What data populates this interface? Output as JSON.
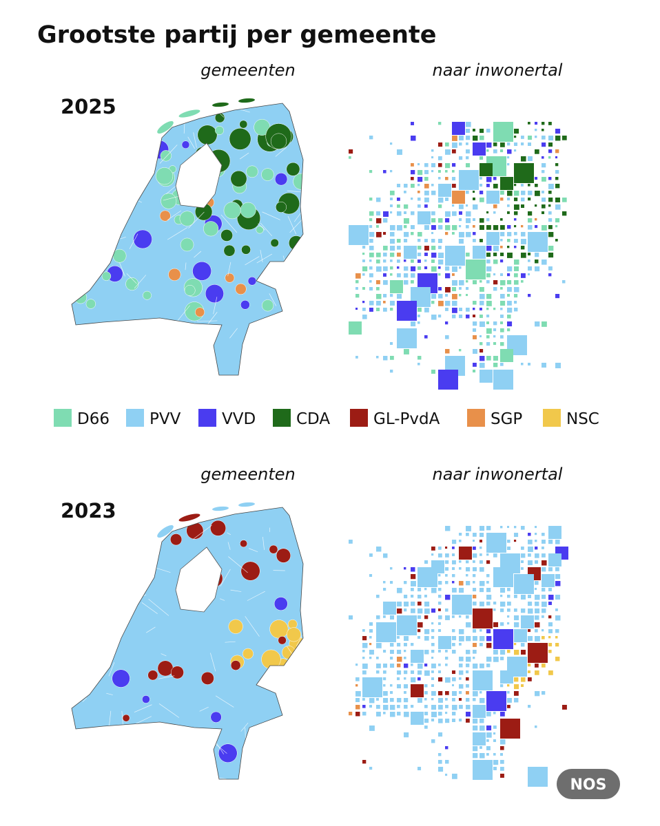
{
  "title": "Grootste partij per gemeente",
  "panels": [
    {
      "year": "2025",
      "map_label": "gemeenten",
      "cartogram_label": "naar inwonertal"
    },
    {
      "year": "2023",
      "map_label": "gemeenten",
      "cartogram_label": "naar inwonertal"
    }
  ],
  "legend": [
    {
      "name": "D66",
      "color": "#7fdcb2"
    },
    {
      "name": "PVV",
      "color": "#8fd0f3"
    },
    {
      "name": "VVD",
      "color": "#4a3cf0"
    },
    {
      "name": "CDA",
      "color": "#1f6a1a"
    },
    {
      "name": "GL-PvdA",
      "color": "#9c1c14"
    },
    {
      "name": "SGP",
      "color": "#e8904a"
    },
    {
      "name": "NSC",
      "color": "#f1c84b"
    }
  ],
  "logo": "NOS"
}
